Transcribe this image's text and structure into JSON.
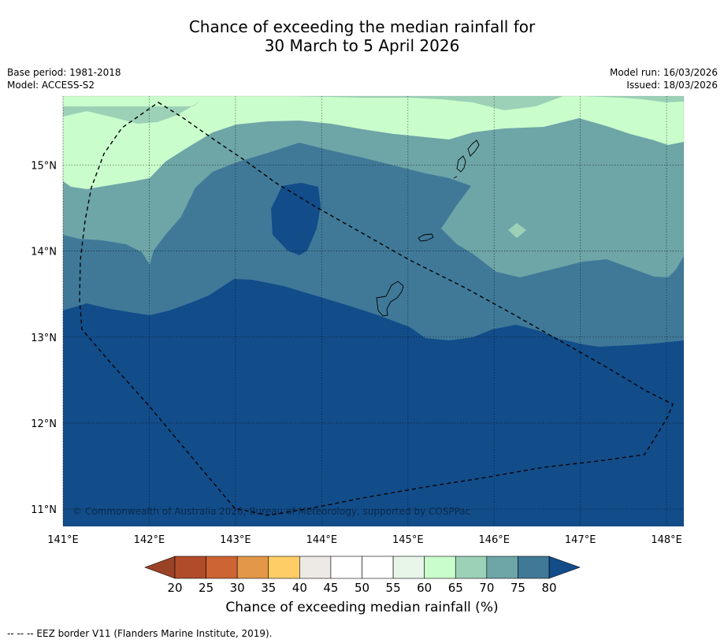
{
  "title": {
    "line1": "Chance of exceeding the median rainfall for",
    "line2": "30 March to 5 April 2026"
  },
  "meta": {
    "base_period": "Base period: 1981-2018",
    "model": "Model: ACCESS-S2",
    "model_run": "Model run: 16/03/2026",
    "issued": "Issued: 18/03/2026"
  },
  "map": {
    "lon_range": [
      141.0,
      148.2
    ],
    "lat_range": [
      10.8,
      15.8
    ],
    "lon_ticks": [
      {
        "value": 141,
        "label": "141°E"
      },
      {
        "value": 142,
        "label": "142°E"
      },
      {
        "value": 143,
        "label": "143°E"
      },
      {
        "value": 144,
        "label": "144°E"
      },
      {
        "value": 145,
        "label": "145°E"
      },
      {
        "value": 146,
        "label": "146°E"
      },
      {
        "value": 147,
        "label": "147°E"
      },
      {
        "value": 148,
        "label": "148°E"
      }
    ],
    "lat_ticks": [
      {
        "value": 15,
        "label": "15°N"
      },
      {
        "value": 14,
        "label": "14°N"
      },
      {
        "value": 13,
        "label": "13°N"
      },
      {
        "value": 12,
        "label": "12°N"
      },
      {
        "value": 11,
        "label": "11°N"
      }
    ],
    "copyright": "© Commonwealth of Australia 2026, Bureau of Meteorology, supported by COSPPac",
    "colors": {
      "c60_65": "#cafdcc",
      "c65_70": "#9cd1b7",
      "c70_75": "#6ea5a7",
      "c75_80": "#407998",
      "c80_plus": "#124d8a",
      "coast": "#000000"
    }
  },
  "colorbar": {
    "label": "Chance of exceeding median rainfall (%)",
    "ticks": [
      "20",
      "25",
      "30",
      "35",
      "40",
      "45",
      "50",
      "55",
      "60",
      "65",
      "70",
      "75",
      "80"
    ],
    "colors": [
      "#b14c2a",
      "#cd6433",
      "#e39748",
      "#fecd66",
      "#ede9e4",
      "#ffffff",
      "#ffffff",
      "#e7f6e9",
      "#cafdcc",
      "#9cd1b7",
      "#6ea5a7",
      "#407998"
    ],
    "under_color": "#9a4226",
    "over_color": "#124d8a"
  },
  "footnote": "--  --  -- EEZ border V11 (Flanders Marine Institute, 2019)."
}
